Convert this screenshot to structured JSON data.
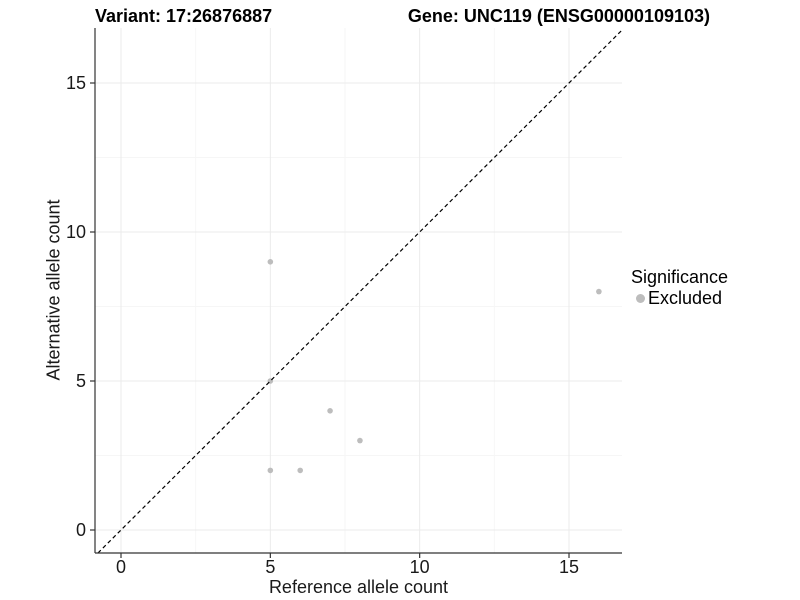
{
  "titles": {
    "variant": "Variant: 17:26876887",
    "gene": "Gene: UNC119 (ENSG00000109103)"
  },
  "chart_data": {
    "type": "scatter",
    "xlabel": "Reference allele count",
    "ylabel": "Alternative allele count",
    "x_ticks": [
      0,
      5,
      10,
      15
    ],
    "y_ticks": [
      0,
      5,
      10,
      15
    ],
    "x_minor_ticks": [
      2.5,
      7.5,
      12.5
    ],
    "y_minor_ticks": [
      2.5,
      7.5,
      12.5
    ],
    "xlim": [
      -0.87,
      16.78
    ],
    "ylim": [
      -0.77,
      16.85
    ],
    "grid": true,
    "identity_line": {
      "slope": 1,
      "intercept": 0,
      "style": "dashed",
      "color": "#000000"
    },
    "series": [
      {
        "name": "Excluded",
        "color": "#bdbdbd",
        "points": [
          {
            "x": 5,
            "y": 9
          },
          {
            "x": 16,
            "y": 8
          },
          {
            "x": 5,
            "y": 5
          },
          {
            "x": 7,
            "y": 4
          },
          {
            "x": 8,
            "y": 3
          },
          {
            "x": 5,
            "y": 2
          },
          {
            "x": 6,
            "y": 2
          }
        ]
      }
    ],
    "legend": {
      "position": "right",
      "title": "Significance",
      "items": [
        {
          "label": "Excluded",
          "color": "#bdbdbd"
        }
      ]
    }
  },
  "colors": {
    "background": "#ffffff",
    "grid_major": "#ebebeb",
    "grid_minor": "#f6f6f6",
    "axis_line": "#333333",
    "tick_mark": "#333333",
    "tick_text": "#1a1a1a",
    "point": "#bdbdbd"
  }
}
